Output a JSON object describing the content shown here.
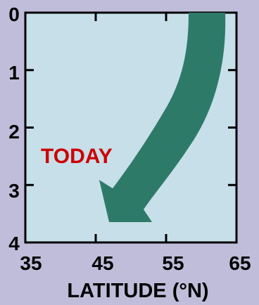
{
  "chart_data": {
    "type": "diagram",
    "xlabel": "LATITUDE (°N)",
    "ylabel": "",
    "xlim": [
      35,
      65
    ],
    "ylim": [
      0,
      4
    ],
    "x_ticks": [
      "35",
      "45",
      "55",
      "65"
    ],
    "y_ticks": [
      "0",
      "1",
      "2",
      "3",
      "4"
    ],
    "annotation": "TODAY",
    "colors": {
      "background": "#bfbdd9",
      "plot_area": "#c7dfe9",
      "arrow": "#2e7a69",
      "annotation": "#cc0000",
      "text": "#000000"
    }
  }
}
